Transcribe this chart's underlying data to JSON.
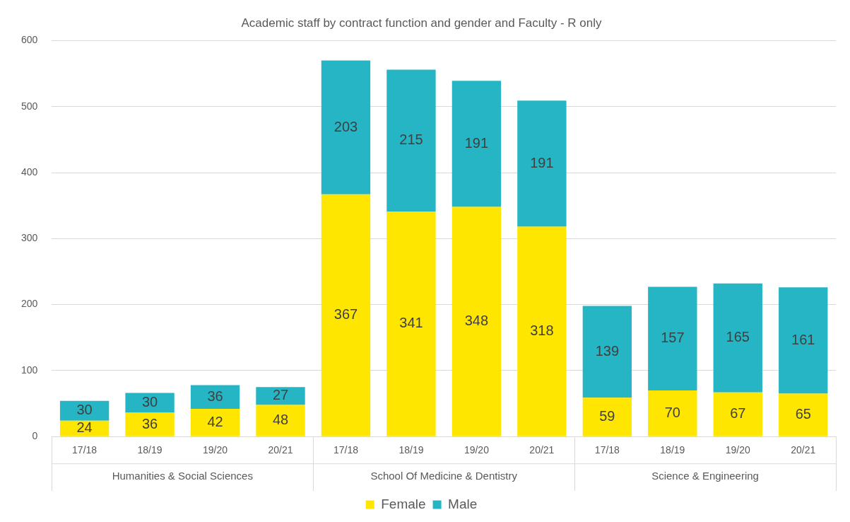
{
  "chart_data": {
    "type": "bar",
    "title": "Academic staff by contract function and gender and Faculty - R only",
    "categories": [
      "17/18",
      "18/19",
      "19/20",
      "20/21",
      "17/18",
      "18/19",
      "19/20",
      "20/21",
      "17/18",
      "18/19",
      "19/20",
      "20/21"
    ],
    "series": [
      {
        "name": "Female",
        "color": "#ffe600",
        "values": [
          24,
          36,
          42,
          48,
          367,
          341,
          348,
          318,
          59,
          70,
          67,
          65
        ]
      },
      {
        "name": "Male",
        "color": "#26b5c4",
        "values": [
          30,
          30,
          36,
          27,
          203,
          215,
          191,
          191,
          139,
          157,
          165,
          161
        ]
      }
    ],
    "stacked": true,
    "data_labels": true,
    "ylim": [
      0,
      600
    ],
    "yticks": [
      0,
      100,
      200,
      300,
      400,
      500,
      600
    ],
    "grid": "y",
    "legend": "bottom",
    "annotations": [
      "Humanities & Social Sciences",
      "School Of Medicine & Dentistry",
      "Science & Engineering"
    ]
  }
}
